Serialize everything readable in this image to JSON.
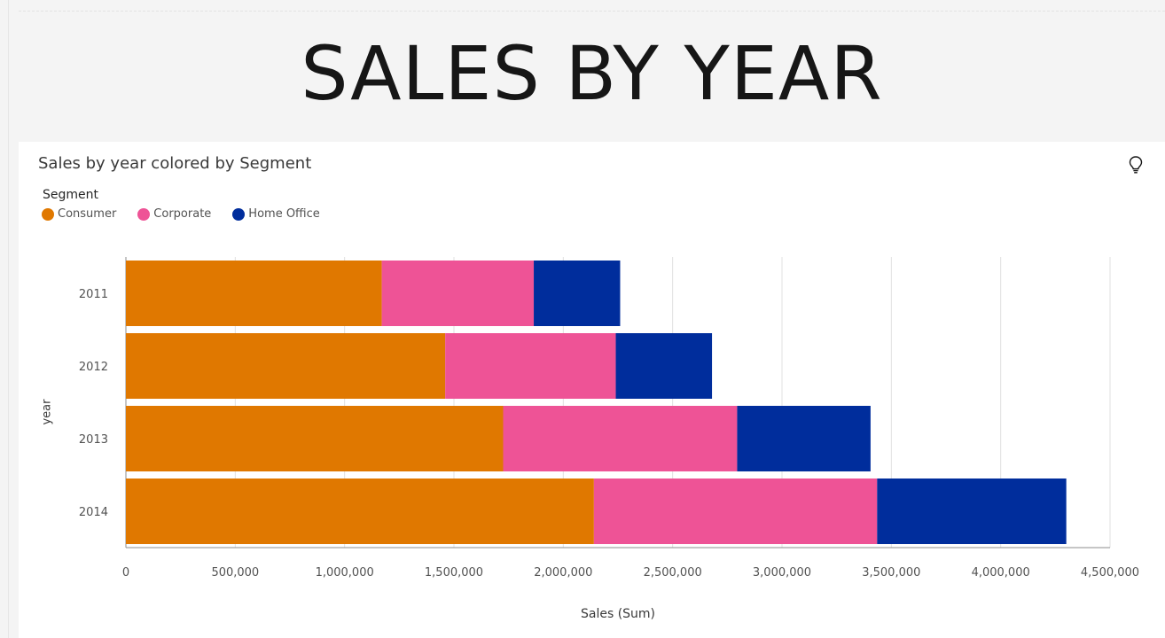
{
  "header": {
    "title": "SALES BY YEAR"
  },
  "widget": {
    "title": "Sales by year colored by Segment",
    "icon": "lightbulb-icon"
  },
  "legend": {
    "title": "Segment",
    "items": [
      {
        "label": "Consumer",
        "color": "#e07800"
      },
      {
        "label": "Corporate",
        "color": "#ee5396"
      },
      {
        "label": "Home Office",
        "color": "#002d9c"
      }
    ]
  },
  "chart_data": {
    "type": "bar",
    "orientation": "horizontal",
    "stacked": true,
    "title": "Sales by year colored by Segment",
    "xlabel": "Sales (Sum)",
    "ylabel": "year",
    "categories": [
      "2011",
      "2012",
      "2013",
      "2014"
    ],
    "series": [
      {
        "name": "Consumer",
        "color": "#e07800",
        "values": [
          1170000,
          1460000,
          1725000,
          2140000
        ]
      },
      {
        "name": "Corporate",
        "color": "#ee5396",
        "values": [
          695000,
          780000,
          1070000,
          1295000
        ]
      },
      {
        "name": "Home Office",
        "color": "#002d9c",
        "values": [
          395000,
          440000,
          610000,
          865000
        ]
      }
    ],
    "xlim": [
      0,
      4500000
    ],
    "xticks": [
      0,
      500000,
      1000000,
      1500000,
      2000000,
      2500000,
      3000000,
      3500000,
      4000000,
      4500000
    ],
    "xtick_labels": [
      "0",
      "500,000",
      "1,000,000",
      "1,500,000",
      "2,000,000",
      "2,500,000",
      "3,000,000",
      "3,500,000",
      "4,000,000",
      "4,500,000"
    ],
    "grid": true,
    "legend_position": "top-left"
  }
}
